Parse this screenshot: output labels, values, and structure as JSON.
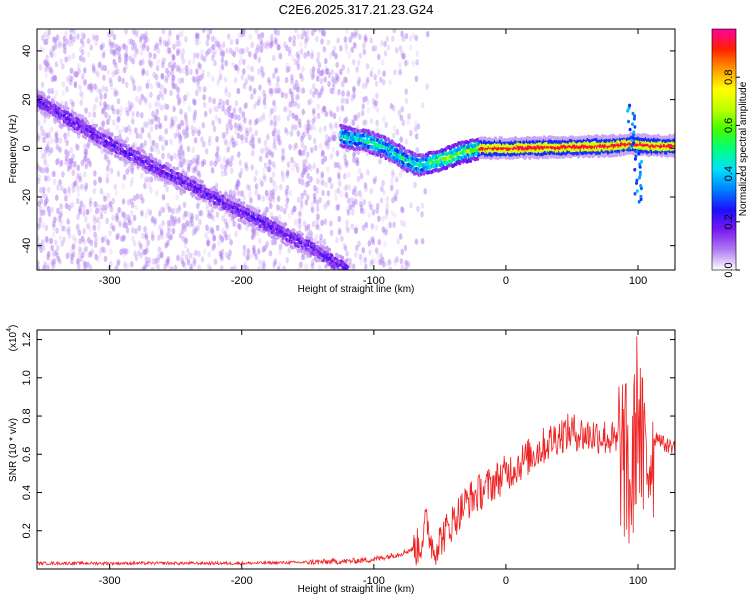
{
  "chart_data": [
    {
      "type": "heatmap",
      "title": "C2E6.2025.317.21.23.G24",
      "xlabel": "Height of straight line (km)",
      "ylabel": "Frequency (Hz)",
      "xlim": [
        -355,
        128
      ],
      "ylim": [
        -50,
        49
      ],
      "xticks": [
        -300,
        -200,
        -100,
        0,
        100
      ],
      "xtick_labels": [
        "-300",
        "-200",
        "-100",
        "0",
        "100"
      ],
      "yticks": [
        -40,
        -20,
        0,
        20,
        40
      ],
      "ytick_labels": [
        "-40",
        "-20",
        "0",
        "20",
        "40"
      ],
      "colorbar": {
        "label": "Normalized spectral amplitude",
        "range": [
          0.0,
          1.0
        ],
        "ticks": [
          0.0,
          0.2,
          0.4,
          0.6,
          0.8
        ],
        "tick_labels": [
          "0.0",
          "0.2",
          "0.4",
          "0.6",
          "0.8"
        ],
        "colors": [
          "#ffffff",
          "#b07cf0",
          "#7a18f0",
          "#1a10ff",
          "#0080ff",
          "#00e0ff",
          "#00ff80",
          "#40ff00",
          "#c0ff00",
          "#ffff00",
          "#ff9a00",
          "#ff2000",
          "#ff00a0"
        ]
      },
      "ridges": [
        {
          "name": "descending trace",
          "x": [
            -355,
            -300,
            -250,
            -200,
            -150,
            -120
          ],
          "y": [
            20,
            2,
            -12,
            -26,
            -40,
            -50
          ],
          "amplitude": 0.2
        },
        {
          "name": "main trace",
          "x": [
            -125,
            -105,
            -90,
            -75,
            -65,
            -50,
            -35,
            -20,
            0,
            40,
            80,
            95,
            110,
            128
          ],
          "y": [
            5,
            3,
            0,
            -5,
            -7,
            -5,
            -2,
            0,
            0,
            0.5,
            1,
            2,
            1,
            1
          ],
          "amplitude": 0.95
        }
      ],
      "features": [
        {
          "name": "spike near 95 km",
          "x": 95,
          "y_range": [
            -22,
            18
          ]
        }
      ]
    },
    {
      "type": "line",
      "xlabel": "Height of straight line (km)",
      "ylabel": "SNR (10 * v/v)",
      "multiplier": "(x10",
      "multiplier_exp": "4",
      "multiplier_close": ")",
      "xlim": [
        -355,
        128
      ],
      "ylim": [
        0,
        1.25
      ],
      "xticks": [
        -300,
        -200,
        -100,
        0,
        100
      ],
      "xtick_labels": [
        "-300",
        "-200",
        "-100",
        "0",
        "100"
      ],
      "yticks": [
        0.2,
        0.4,
        0.6,
        0.8,
        1.0,
        1.2
      ],
      "ytick_labels": [
        "0.2",
        "0.4",
        "0.6",
        "0.8",
        "1.0",
        "1.2"
      ],
      "series": [
        {
          "name": "SNR",
          "color": "#ee2222",
          "x": [
            -355,
            -300,
            -250,
            -200,
            -150,
            -120,
            -100,
            -80,
            -65,
            -60,
            -55,
            -50,
            -40,
            -30,
            -20,
            -10,
            0,
            10,
            20,
            30,
            40,
            50,
            60,
            70,
            80,
            88,
            92,
            95,
            98,
            100,
            103,
            106,
            110,
            115,
            120,
            128
          ],
          "y": [
            0.03,
            0.03,
            0.03,
            0.03,
            0.035,
            0.04,
            0.05,
            0.08,
            0.12,
            0.25,
            0.1,
            0.15,
            0.25,
            0.35,
            0.4,
            0.45,
            0.5,
            0.55,
            0.6,
            0.65,
            0.7,
            0.72,
            0.7,
            0.7,
            0.68,
            0.62,
            0.5,
            0.4,
            0.7,
            0.9,
            0.6,
            0.5,
            0.65,
            0.7,
            0.65,
            0.64
          ]
        }
      ]
    }
  ]
}
